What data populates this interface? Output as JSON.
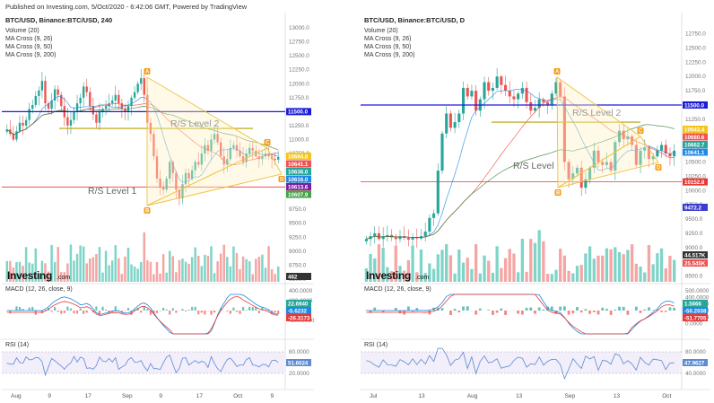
{
  "header": {
    "published": "Published on Investing.com, 5/Oct/2020 - 6:42:06 GMT, Powered by TradingView"
  },
  "colors": {
    "up": "#26a69a",
    "down": "#ef5350",
    "ma_fast": "#1e88e5",
    "ma_mid": "#f44336",
    "ma_slow": "#7b1fa2",
    "blue_level": "#1c1cd6",
    "yellow": "#f5c518",
    "red_level": "#e53935",
    "pattern": "#f0c040",
    "volume_up": "#7fd4c8",
    "volume_down": "#f5a5a3"
  },
  "chart_data": [
    {
      "type": "candlestick",
      "title": "BTC/USD, Binance:BTC/USD, 240",
      "indicators": [
        "Volume (20)",
        "MA Cross (9, 26)",
        "MA Cross (9, 50)",
        "MA Cross (9, 200)"
      ],
      "y_ticks": [
        "13000.0",
        "12750.0",
        "12500.0",
        "12250.0",
        "12000.0",
        "11750.0",
        "11500.0",
        "11250.0",
        "11000.0",
        "10750.0",
        "10500.0",
        "10250.0",
        "10000.0",
        "9750.0",
        "9500.0",
        "9250.0",
        "9000.0",
        "8750.0",
        "8500.0"
      ],
      "ylim": [
        8450,
        13050
      ],
      "x_labels": [
        "Aug",
        "9",
        "17",
        "Sep",
        "9",
        "17",
        "Oct",
        "9"
      ],
      "levels": [
        {
          "name": "blue",
          "value": 11500,
          "tag": "11500.0"
        },
        {
          "name": "R/S Level 2",
          "value": 11200
        },
        {
          "name": "R/S Level 1",
          "value": 10150,
          "tag": "10152.8"
        }
      ],
      "price_tags": [
        "10684.8",
        "10641.1",
        "10636.0",
        "10616.0",
        "10613.6",
        "10607.9"
      ],
      "patterns": [
        "A",
        "B",
        "C",
        "D"
      ],
      "labels": {
        "level1": "R/S Level 1",
        "level2": "R/S Level 2"
      },
      "volume_tag": "462",
      "macd": {
        "title": "MACD (12, 26, close, 9)",
        "ticks": [
          "400.0000",
          "200.0000",
          "0.0000",
          "-200.0000"
        ],
        "tags": [
          "22.6940",
          "-5.6232",
          "-26.3173"
        ]
      },
      "rsi": {
        "title": "RSI (14)",
        "ticks": [
          "80.0000",
          "40.0000",
          "20.0000"
        ],
        "tag": "51.6024"
      },
      "close": [
        11180,
        11100,
        11000,
        11150,
        11300,
        11250,
        11350,
        11550,
        11620,
        11780,
        11880,
        12050,
        11650,
        11550,
        11700,
        11900,
        11800,
        11600,
        11400,
        11250,
        11350,
        11500,
        11650,
        11750,
        11950,
        11850,
        11600,
        11450,
        11300,
        11500,
        11550,
        11600,
        11650,
        11700,
        11800,
        11650,
        11550,
        11500,
        11600,
        11750,
        11850,
        12000,
        12100,
        11800,
        11300,
        11100,
        10700,
        10300,
        10150,
        10100,
        10300,
        10600,
        10400,
        10100,
        9950,
        10200,
        10400,
        10300,
        10450,
        10600,
        10550,
        10750,
        10900,
        10800,
        11000,
        11100,
        10950,
        10700,
        10550,
        10650,
        10850,
        10900,
        10800,
        10700,
        10600,
        10750,
        10850,
        10800,
        10700,
        10650,
        10700,
        10750,
        10700,
        10650,
        10640,
        10685
      ]
    },
    {
      "type": "candlestick",
      "title": "BTC/USD, Binance:BTC/USD, D",
      "indicators": [
        "Volume (20)",
        "MA Cross (9, 26)",
        "MA Cross (9, 50)",
        "MA Cross (9, 200)"
      ],
      "y_ticks": [
        "12750.0",
        "12500.0",
        "12250.0",
        "12000.0",
        "11750.0",
        "11500.0",
        "11250.0",
        "11000.0",
        "10750.0",
        "10500.0",
        "10250.0",
        "10000.0",
        "9750.0",
        "9500.0",
        "9250.0",
        "9000.0",
        "8750.0",
        "8500.0"
      ],
      "ylim": [
        8400,
        12900
      ],
      "x_labels": [
        "Jul",
        "13",
        "Aug",
        "13",
        "Sep",
        "13",
        "Oct"
      ],
      "levels": [
        {
          "name": "blue",
          "value": 11500,
          "tag": "11500.0"
        },
        {
          "name": "R/S Level 2",
          "value": 11200
        },
        {
          "name": "R/S Level 1",
          "value": 10152,
          "tag": "10152.8"
        }
      ],
      "price_tags": [
        "10943.4",
        "10680.6",
        "10662.7",
        "10641.1"
      ],
      "ma_slow_tag": "9472.2",
      "patterns": [
        "A",
        "B",
        "C",
        "D"
      ],
      "labels": {
        "level1": "R/S Level",
        "level2": "R/S Level 2"
      },
      "volume_tags": [
        "44.517K",
        "25.545K"
      ],
      "macd": {
        "title": "MACD (12, 26, close, 9)",
        "ticks": [
          "500.0000",
          "400.0000",
          "300.0000",
          "200.0000",
          "100.0000",
          "0.0000"
        ],
        "tags": [
          "1.5666",
          "-50.2038",
          "-51.7705"
        ]
      },
      "rsi": {
        "title": "RSI (14)",
        "ticks": [
          "80.0000",
          "60.0000",
          "40.0000"
        ],
        "tag": "47.9627"
      },
      "close": [
        9150,
        9200,
        9250,
        9150,
        9200,
        9220,
        9180,
        9150,
        9200,
        9170,
        9140,
        9180,
        9160,
        9200,
        9280,
        9520,
        9600,
        10350,
        11000,
        11350,
        11100,
        11200,
        11350,
        11800,
        11650,
        11750,
        11400,
        11600,
        11900,
        11750,
        11800,
        12000,
        11850,
        11750,
        11650,
        11600,
        11700,
        11800,
        11550,
        11400,
        11450,
        11600,
        11550,
        11500,
        11700,
        11900,
        11650,
        10500,
        10200,
        10300,
        10400,
        10050,
        10200,
        10400,
        10700,
        10500,
        10450,
        10500,
        10350,
        10850,
        11050,
        10900,
        10950,
        10800,
        10450,
        10700,
        10750,
        10550,
        10600,
        10700,
        10800,
        10650,
        10600,
        10700
      ]
    }
  ]
}
